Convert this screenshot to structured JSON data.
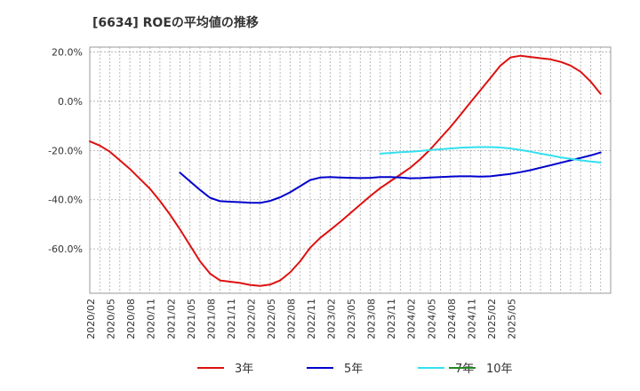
{
  "chart_data": {
    "type": "line",
    "title": "[6634]  ROEの平均値の推移",
    "xlabel": "",
    "ylabel": "",
    "ylim": [
      -78,
      22
    ],
    "y_ticks": [
      {
        "value": 20,
        "label": "20.0%"
      },
      {
        "value": 0,
        "label": "0.0%"
      },
      {
        "value": -20,
        "label": "-20.0%"
      },
      {
        "value": -40,
        "label": "-40.0%"
      },
      {
        "value": -60,
        "label": "-60.0%"
      }
    ],
    "x_tick_labels": [
      "2020/02",
      "2020/05",
      "2020/08",
      "2020/11",
      "2021/02",
      "2021/05",
      "2021/08",
      "2021/11",
      "2022/02",
      "2022/05",
      "2022/08",
      "2022/11",
      "2023/02",
      "2023/05",
      "2023/08",
      "2023/11",
      "2024/02",
      "2024/05",
      "2024/08",
      "2024/11",
      "2025/02",
      "2025/05"
    ],
    "grid": true,
    "legend_position": "bottom",
    "series": [
      {
        "name": "3年",
        "color": "#dd1111",
        "points": [
          [
            0,
            -16.3
          ],
          [
            1,
            -18
          ],
          [
            2,
            -20.5
          ],
          [
            3,
            -24
          ],
          [
            4,
            -27.5
          ],
          [
            5,
            -31.5
          ],
          [
            6,
            -35.5
          ],
          [
            7,
            -40.5
          ],
          [
            8,
            -46
          ],
          [
            9,
            -52
          ],
          [
            10,
            -58.5
          ],
          [
            11,
            -65
          ],
          [
            12,
            -70
          ],
          [
            13,
            -72.8
          ],
          [
            14,
            -73.3
          ],
          [
            15,
            -73.8
          ],
          [
            16,
            -74.6
          ],
          [
            17,
            -75
          ],
          [
            18,
            -74.5
          ],
          [
            19,
            -72.8
          ],
          [
            20,
            -69.5
          ],
          [
            21,
            -65
          ],
          [
            22,
            -59.5
          ],
          [
            23,
            -55.5
          ],
          [
            24,
            -52.3
          ],
          [
            25,
            -49
          ],
          [
            26,
            -45.5
          ],
          [
            27,
            -42
          ],
          [
            28,
            -38.5
          ],
          [
            29,
            -35.3
          ],
          [
            30,
            -32.5
          ],
          [
            31,
            -29.8
          ],
          [
            32,
            -27
          ],
          [
            33,
            -23.5
          ],
          [
            34,
            -19.5
          ],
          [
            35,
            -15
          ],
          [
            36,
            -10.5
          ],
          [
            37,
            -5.5
          ],
          [
            38,
            -0.5
          ],
          [
            39,
            4.5
          ],
          [
            40,
            9.5
          ],
          [
            41,
            14.5
          ],
          [
            42,
            17.8
          ],
          [
            43,
            18.5
          ],
          [
            44,
            18
          ],
          [
            45,
            17.5
          ],
          [
            46,
            17
          ],
          [
            47,
            16
          ],
          [
            48,
            14.5
          ],
          [
            49,
            12
          ],
          [
            50,
            8
          ],
          [
            51,
            3
          ]
        ]
      },
      {
        "name": "5年",
        "color": "#0000cc",
        "points": [
          [
            9,
            -29
          ],
          [
            10,
            -32.5
          ],
          [
            11,
            -36
          ],
          [
            12,
            -39.2
          ],
          [
            13,
            -40.6
          ],
          [
            14,
            -40.8
          ],
          [
            15,
            -41
          ],
          [
            16,
            -41.2
          ],
          [
            17,
            -41.3
          ],
          [
            18,
            -40.5
          ],
          [
            19,
            -39
          ],
          [
            20,
            -37
          ],
          [
            21,
            -34.5
          ],
          [
            22,
            -32
          ],
          [
            23,
            -31
          ],
          [
            24,
            -30.8
          ],
          [
            25,
            -31
          ],
          [
            26,
            -31.1
          ],
          [
            27,
            -31.2
          ],
          [
            28,
            -31.1
          ],
          [
            29,
            -30.8
          ],
          [
            30,
            -30.8
          ],
          [
            31,
            -31
          ],
          [
            32,
            -31.3
          ],
          [
            33,
            -31.2
          ],
          [
            34,
            -31
          ],
          [
            35,
            -30.8
          ],
          [
            36,
            -30.6
          ],
          [
            37,
            -30.5
          ],
          [
            38,
            -30.5
          ],
          [
            39,
            -30.6
          ],
          [
            40,
            -30.5
          ],
          [
            41,
            -30
          ],
          [
            42,
            -29.5
          ],
          [
            43,
            -28.8
          ],
          [
            44,
            -28
          ],
          [
            45,
            -27
          ],
          [
            46,
            -26
          ],
          [
            47,
            -25
          ],
          [
            48,
            -24
          ],
          [
            49,
            -23
          ],
          [
            50,
            -22
          ],
          [
            51,
            -20.8
          ]
        ]
      },
      {
        "name": "7年",
        "color": "#33e0ee",
        "points": [
          [
            29,
            -21.3
          ],
          [
            30,
            -21
          ],
          [
            31,
            -20.7
          ],
          [
            32,
            -20.5
          ],
          [
            33,
            -20.2
          ],
          [
            34,
            -19.8
          ],
          [
            35,
            -19.5
          ],
          [
            36,
            -19.2
          ],
          [
            37,
            -18.9
          ],
          [
            38,
            -18.7
          ],
          [
            39,
            -18.6
          ],
          [
            40,
            -18.6
          ],
          [
            41,
            -18.8
          ],
          [
            42,
            -19.2
          ],
          [
            43,
            -19.8
          ],
          [
            44,
            -20.5
          ],
          [
            45,
            -21.3
          ],
          [
            46,
            -22
          ],
          [
            47,
            -22.8
          ],
          [
            48,
            -23.4
          ],
          [
            49,
            -24
          ],
          [
            50,
            -24.5
          ],
          [
            51,
            -24.9
          ]
        ]
      },
      {
        "name": "10年",
        "color": "#228822",
        "points": []
      }
    ]
  }
}
